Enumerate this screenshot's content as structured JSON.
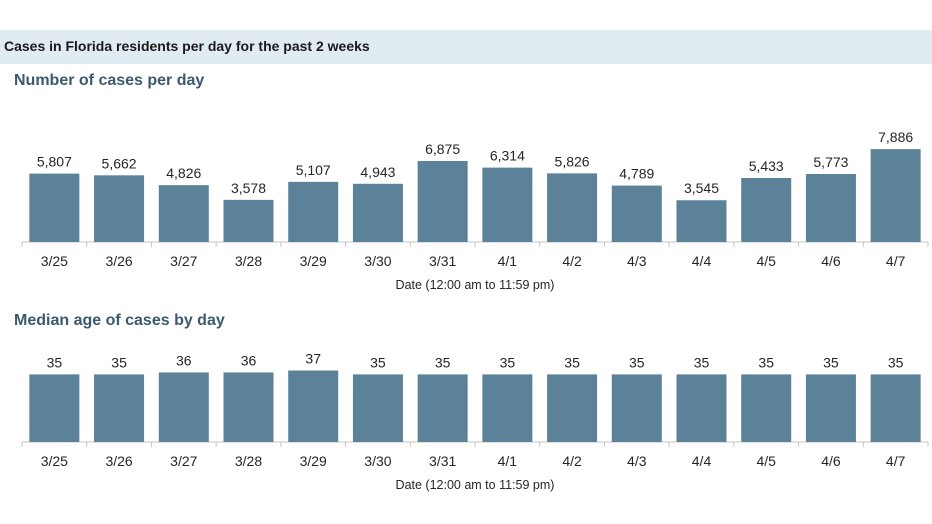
{
  "header": {
    "title": "Cases in Florida residents per day for the past 2 weeks",
    "background": "#e0ebf2"
  },
  "bar_color": "#5b8298",
  "chart_data": [
    {
      "type": "bar",
      "title": "Number of cases per day",
      "xlabel": "Date (12:00 am to 11:59 pm)",
      "ylabel": "",
      "categories": [
        "3/25",
        "3/26",
        "3/27",
        "3/28",
        "3/29",
        "3/30",
        "3/31",
        "4/1",
        "4/2",
        "4/3",
        "4/4",
        "4/5",
        "4/6",
        "4/7"
      ],
      "values": [
        5807,
        5662,
        4826,
        3578,
        5107,
        4943,
        6875,
        6314,
        5826,
        4789,
        3545,
        5433,
        5773,
        7886
      ],
      "data_labels": [
        "5,807",
        "5,662",
        "4,826",
        "3,578",
        "5,107",
        "4,943",
        "6,875",
        "6,314",
        "5,826",
        "4,789",
        "3,545",
        "5,433",
        "5,773",
        "7,886"
      ],
      "ylim": [
        0,
        9000
      ],
      "grid": false,
      "legend": "none"
    },
    {
      "type": "bar",
      "title": "Median age of cases by day",
      "xlabel": "Date (12:00 am to 11:59 pm)",
      "ylabel": "",
      "categories": [
        "3/25",
        "3/26",
        "3/27",
        "3/28",
        "3/29",
        "3/30",
        "3/31",
        "4/1",
        "4/2",
        "4/3",
        "4/4",
        "4/5",
        "4/6",
        "4/7"
      ],
      "values": [
        35,
        35,
        36,
        36,
        37,
        35,
        35,
        35,
        35,
        35,
        35,
        35,
        35,
        35
      ],
      "data_labels": [
        "35",
        "35",
        "36",
        "36",
        "37",
        "35",
        "35",
        "35",
        "35",
        "35",
        "35",
        "35",
        "35",
        "35"
      ],
      "ylim": [
        0,
        44
      ],
      "grid": false,
      "legend": "none"
    }
  ]
}
